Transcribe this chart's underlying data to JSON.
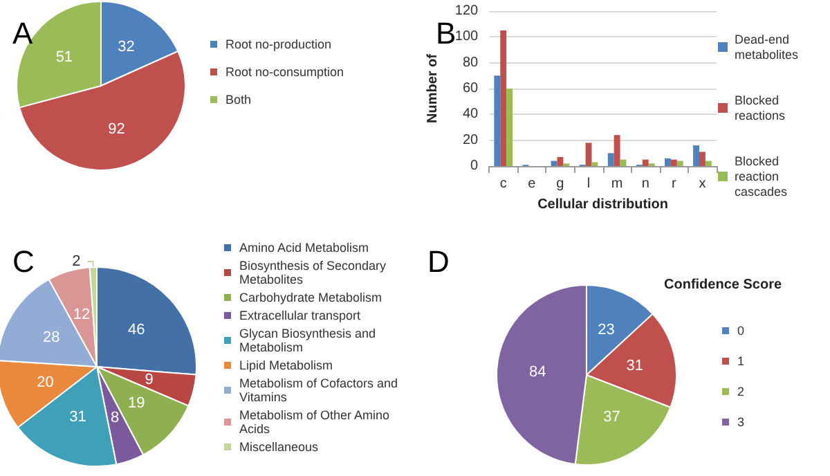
{
  "chart_data": [
    {
      "type": "pie",
      "title": "A",
      "categories": [
        "Root no-production",
        "Root no-consumption",
        "Both"
      ],
      "values": [
        32,
        92,
        51
      ],
      "colors": [
        "#4f81bd",
        "#c0504d",
        "#9bbb59"
      ],
      "data_labels": true,
      "legend": "right"
    },
    {
      "type": "bar",
      "title": "B",
      "ylabel": "Number of",
      "xlabel": "Cellular distribution",
      "categories": [
        "c",
        "e",
        "g",
        "l",
        "m",
        "n",
        "r",
        "x"
      ],
      "series": [
        {
          "name": "Dead-end metabolites",
          "color": "#4f81bd",
          "values": [
            70,
            1,
            4,
            1,
            10,
            1,
            6,
            16
          ]
        },
        {
          "name": "Blocked reactions",
          "color": "#c0504d",
          "values": [
            105,
            0,
            7,
            18,
            24,
            5,
            5,
            11
          ]
        },
        {
          "name": "Blocked reaction cascades",
          "color": "#9bbb59",
          "values": [
            60,
            0,
            2,
            3,
            5,
            2,
            4,
            4
          ]
        }
      ],
      "ylim": [
        0,
        120
      ],
      "yticks": [
        0,
        20,
        40,
        60,
        80,
        100,
        120
      ],
      "grid": "y",
      "legend": "right"
    },
    {
      "type": "pie",
      "title": "C",
      "categories": [
        "Amino Acid Metabolism",
        "Biosynthesis of Secondary Metabolites",
        "Carbohydrate Metabolism",
        "Extracellular transport",
        "Glycan Biosynthesis and Metabolism",
        "Lipid Metabolism",
        "Metabolism of Cofactors and Vitamins",
        "Metabolism of Other Amino Acids",
        "Miscellaneous"
      ],
      "values": [
        46,
        9,
        19,
        8,
        31,
        20,
        28,
        12,
        2
      ],
      "colors": [
        "#4470a8",
        "#b84642",
        "#8fb050",
        "#7a5a9c",
        "#3fa0b8",
        "#e8893e",
        "#93acd6",
        "#d99694",
        "#c3d69b"
      ],
      "data_labels": true,
      "legend": "right"
    },
    {
      "type": "pie",
      "title": "D",
      "legend_title": "Confidence Score",
      "categories": [
        "0",
        "1",
        "2",
        "3"
      ],
      "values": [
        23,
        31,
        37,
        84
      ],
      "colors": [
        "#4f81bd",
        "#c0504d",
        "#9bbb59",
        "#8064a2"
      ],
      "data_labels": true,
      "legend": "right"
    }
  ]
}
